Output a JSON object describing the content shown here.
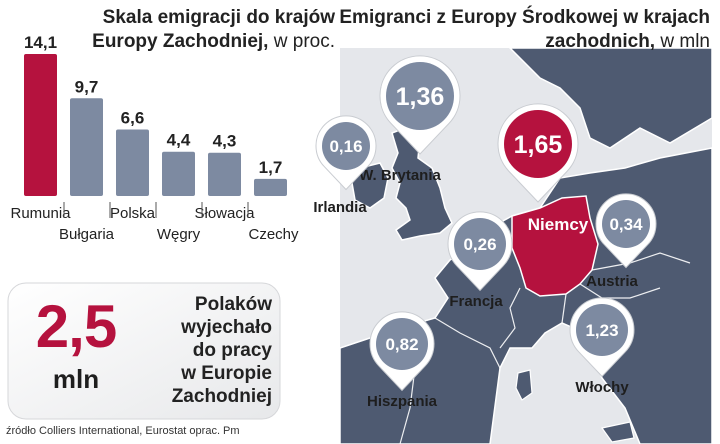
{
  "left_title": {
    "line1": "Skala emigracji do krajów",
    "line2": "Europy Zachodniej,",
    "unit": "w proc."
  },
  "right_title": {
    "line1": "Emigranci z Europy Środkowej w krajach",
    "line2": "zachodnich,",
    "unit": "w mln"
  },
  "stat": {
    "number": "2,5",
    "unit": "mln",
    "text": [
      "Polaków",
      "wyjechało",
      "do pracy",
      "w Europie",
      "Zachodniej"
    ]
  },
  "source": "źródło Colliers International, Eurostat oprac. Pm",
  "colors": {
    "highlight": "#b5123e",
    "bar": "#7d8aa1",
    "map_land": "#4e5a71",
    "map_sea": "#e5e7eb"
  },
  "chart_data": [
    {
      "type": "bar",
      "categories": [
        "Rumunia",
        "Bułgaria",
        "Polska",
        "Węgry",
        "Słowacja",
        "Czechy"
      ],
      "values": [
        14.1,
        9.7,
        6.6,
        4.4,
        4.3,
        1.7
      ],
      "value_labels": [
        "14,1",
        "9,7",
        "6,6",
        "4,4",
        "4,3",
        "1,7"
      ],
      "highlight": "Rumunia",
      "title": "Skala emigracji do krajów Europy Zachodniej, w proc."
    },
    {
      "type": "map",
      "title": "Emigranci z Europy Środkowej w krajach zachodnich, w mln",
      "countries": [
        {
          "name": "W. Brytania",
          "value": 1.36,
          "label": "1,36"
        },
        {
          "name": "Irlandia",
          "value": 0.16,
          "label": "0,16"
        },
        {
          "name": "Niemcy",
          "value": 1.65,
          "label": "1,65",
          "highlight": true
        },
        {
          "name": "Austria",
          "value": 0.34,
          "label": "0,34"
        },
        {
          "name": "Francja",
          "value": 0.26,
          "label": "0,26"
        },
        {
          "name": "Hiszpania",
          "value": 0.82,
          "label": "0,82"
        },
        {
          "name": "Włochy",
          "value": 1.23,
          "label": "1,23"
        }
      ]
    }
  ]
}
